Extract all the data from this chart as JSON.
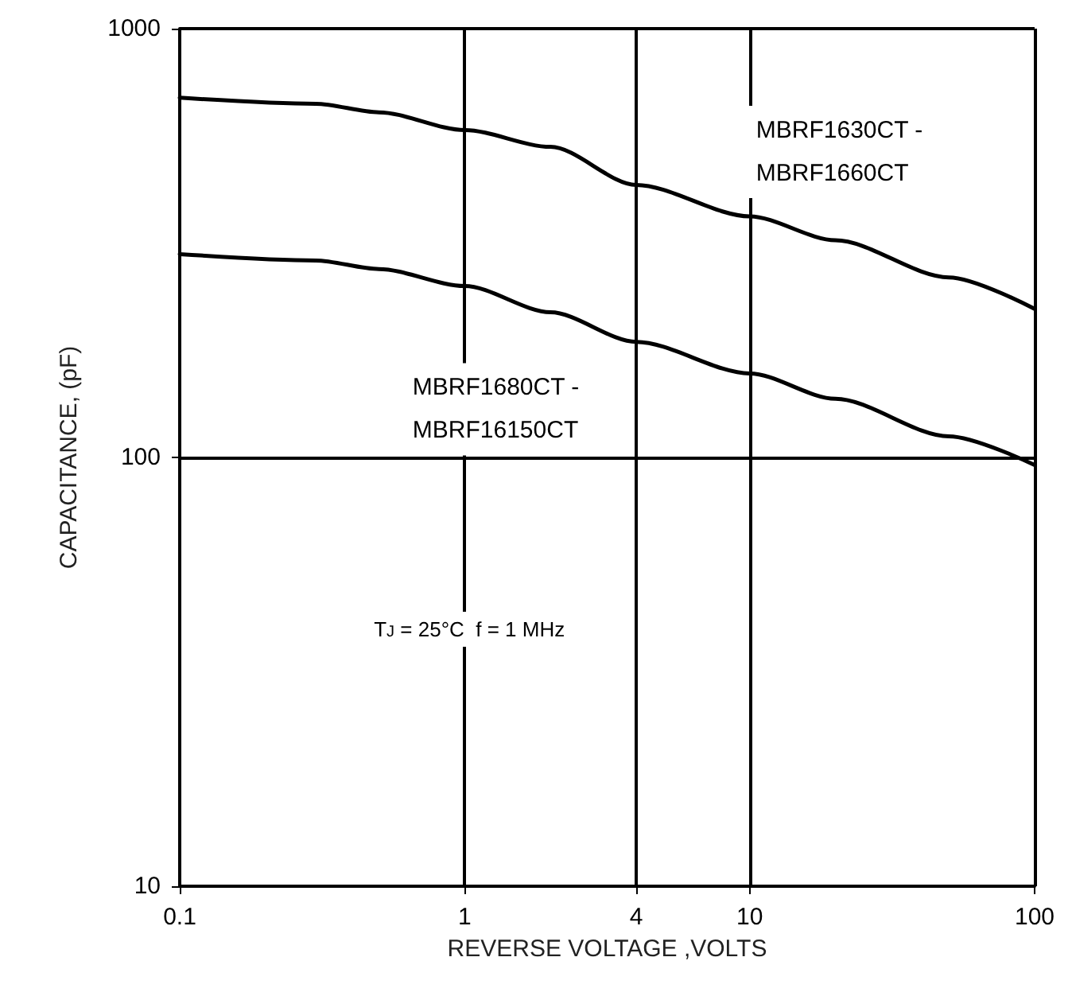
{
  "chart_data": {
    "type": "line",
    "xlabel": "REVERSE VOLTAGE ,VOLTS",
    "ylabel": "CAPACITANCE, (pF)",
    "log": "xy",
    "grid": true,
    "legend": false,
    "marker": "none",
    "line_style": "solid",
    "xlim": [
      0.1,
      100
    ],
    "xticks": [
      0.1,
      1,
      4,
      10,
      100
    ],
    "ylim": [
      10,
      1000
    ],
    "yticks": [
      10,
      100,
      1000
    ],
    "series": [
      {
        "name": "MBRF1630CT - MBRF1660CT",
        "color": "#000000",
        "x": [
          0.1,
          0.3,
          0.5,
          1,
          2,
          4,
          10,
          20,
          50,
          100
        ],
        "values": [
          690,
          668,
          638,
          580,
          530,
          432,
          365,
          321,
          263,
          222
        ]
      },
      {
        "name": "MBRF1680CT - MBRF16150CT",
        "color": "#000000",
        "x": [
          0.1,
          0.3,
          0.5,
          1,
          2,
          4,
          10,
          20,
          50,
          100
        ],
        "values": [
          298,
          288,
          275,
          251,
          218,
          186,
          157,
          137,
          112,
          96
        ]
      }
    ],
    "annotations": [
      {
        "text": "T$_{J}$ = 25°C  f = 1 MHz"
      }
    ]
  }
}
